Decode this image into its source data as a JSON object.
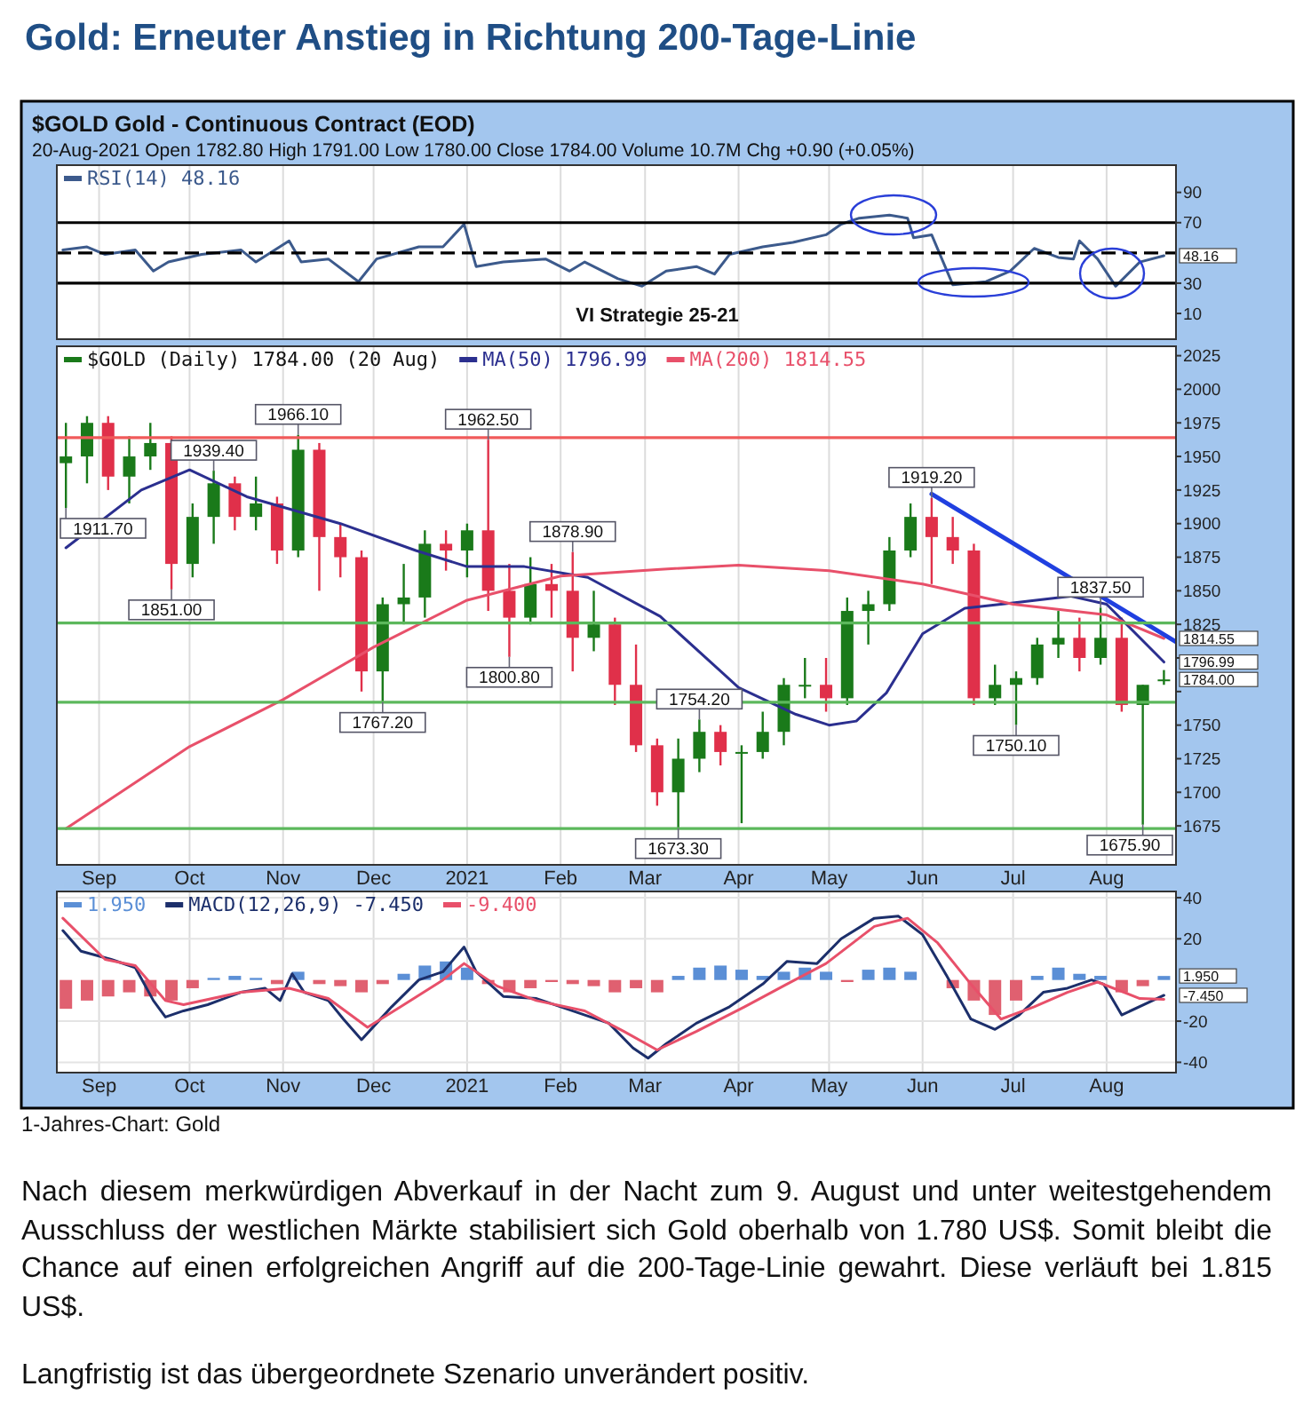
{
  "chart_data": [
    {
      "type": "line",
      "title": "Gold: Erneuter Anstieg in Richtung 200-Tage-Linie",
      "subtitle": "$GOLD Gold - Continuous Contract (EOD)",
      "annotations": [
        "20-Aug-2021  Open 1782.80  High 1791.00  Low 1780.00  Close 1784.00  Volume 10.7M  Chg +0.90 (+0.05%)",
        "VI Strategie 25-21",
        {
          "text": "48.16",
          "x": "2021-08-20",
          "y": 48.16
        }
      ],
      "xlim": [
        "2020-08-18",
        "2021-08-24"
      ],
      "xticks": [
        {
          "value": "2020-09-01",
          "label": null
        },
        {
          "value": "2020-10-01",
          "label": null
        },
        {
          "value": "2020-11-01",
          "label": null
        },
        {
          "value": "2020-12-01",
          "label": null
        },
        {
          "value": "2021-01-01",
          "label": null
        },
        {
          "value": "2021-02-01",
          "label": null
        },
        {
          "value": "2021-03-01",
          "label": null
        },
        {
          "value": "2021-04-01",
          "label": null
        },
        {
          "value": "2021-05-01",
          "label": null
        },
        {
          "value": "2021-06-01",
          "label": null
        },
        {
          "value": "2021-07-01",
          "label": null
        },
        {
          "value": "2021-08-01",
          "label": null
        }
      ],
      "ylim": [
        -7,
        108
      ],
      "yticks": [
        10,
        30,
        70,
        90
      ],
      "tick_labels": "y",
      "grid": "x",
      "legend": "top left",
      "ref_lines": [
        {
          "axis": "y",
          "value": 70,
          "color": "#000000"
        },
        {
          "axis": "y",
          "value": 30,
          "color": "#000000"
        },
        {
          "axis": "y",
          "value": 50,
          "color": "#000000",
          "line_style": "dashed"
        }
      ],
      "series": [
        {
          "name": "RSI(14) 48.16",
          "color": "#3c5a8c",
          "x": [
            "2020-08-20",
            "2020-08-28",
            "2020-09-03",
            "2020-09-13",
            "2020-09-19",
            "2020-09-24",
            "2020-10-05",
            "2020-10-18",
            "2020-10-23",
            "2020-11-03",
            "2020-11-07",
            "2020-11-16",
            "2020-11-26",
            "2020-12-02",
            "2020-12-16",
            "2020-12-24",
            "2020-12-31",
            "2021-01-04",
            "2021-01-13",
            "2021-01-27",
            "2021-02-04",
            "2021-02-09",
            "2021-02-20",
            "2021-02-28",
            "2021-03-08",
            "2021-03-18",
            "2021-03-24",
            "2021-03-29",
            "2021-04-09",
            "2021-04-19",
            "2021-04-30",
            "2021-05-05",
            "2021-05-11",
            "2021-05-21",
            "2021-05-27",
            "2021-05-29",
            "2021-06-04",
            "2021-06-11",
            "2021-06-22",
            "2021-06-30",
            "2021-07-08",
            "2021-07-16",
            "2021-07-21",
            "2021-07-23",
            "2021-07-29",
            "2021-08-04",
            "2021-08-12",
            "2021-08-20"
          ],
          "values": [
            52,
            54,
            49,
            52,
            38,
            44,
            49,
            52,
            44,
            58,
            44,
            46,
            31,
            46,
            54,
            54,
            69,
            41,
            44,
            46,
            38,
            44,
            33,
            28,
            38,
            41,
            36,
            49,
            54,
            57,
            62,
            69,
            73,
            75,
            73,
            60,
            62,
            29,
            31,
            38,
            53,
            47,
            46,
            58,
            46,
            28,
            44,
            48.16
          ]
        }
      ]
    },
    {
      "type": "line",
      "annotations": [
        {
          "text": "1911.70",
          "x": "2020-08-21",
          "y": 1911.7
        },
        {
          "text": "1851.00",
          "x": "2020-09-25",
          "y": 1851
        },
        {
          "text": "1939.40",
          "x": "2020-10-09",
          "y": 1939.4
        },
        {
          "text": "1966.10",
          "x": "2020-11-06",
          "y": 1966.1
        },
        {
          "text": "1767.20",
          "x": "2020-12-04",
          "y": 1767.2
        },
        {
          "text": "1962.50",
          "x": "2021-01-08",
          "y": 1962.5
        },
        {
          "text": "1800.80",
          "x": "2021-01-15",
          "y": 1800.8
        },
        {
          "text": "1878.90",
          "x": "2021-02-05",
          "y": 1878.9
        },
        {
          "text": "1673.30",
          "x": "2021-03-12",
          "y": 1673.3
        },
        {
          "text": "1754.20",
          "x": "2021-03-19",
          "y": 1754.2
        },
        {
          "text": "1919.20",
          "x": "2021-06-04",
          "y": 1919.2
        },
        {
          "text": "1750.10",
          "x": "2021-07-02",
          "y": 1750.1
        },
        {
          "text": "1837.50",
          "x": "2021-07-30",
          "y": 1837.5
        },
        {
          "text": "1675.90",
          "x": "2021-08-13",
          "y": 1675.9
        },
        {
          "text": "1814.55",
          "x": "2021-08-20",
          "y": 1814.55
        },
        {
          "text": "1796.99",
          "x": "2021-08-20",
          "y": 1796.99
        },
        {
          "text": "1784.00",
          "x": "2021-08-20",
          "y": 1784
        }
      ],
      "xlim": [
        "2020-08-18",
        "2021-08-24"
      ],
      "xticks": [
        {
          "value": "2020-09-01",
          "label": "Sep"
        },
        {
          "value": "2020-10-01",
          "label": "Oct"
        },
        {
          "value": "2020-11-01",
          "label": "Nov"
        },
        {
          "value": "2020-12-01",
          "label": "Dec"
        },
        {
          "value": "2021-01-01",
          "label": "2021"
        },
        {
          "value": "2021-02-01",
          "label": "Feb"
        },
        {
          "value": "2021-03-01",
          "label": "Mar"
        },
        {
          "value": "2021-04-01",
          "label": "Apr"
        },
        {
          "value": "2021-05-01",
          "label": "May"
        },
        {
          "value": "2021-06-01",
          "label": "Jun"
        },
        {
          "value": "2021-07-01",
          "label": "Jul"
        },
        {
          "value": "2021-08-01",
          "label": "Aug"
        }
      ],
      "ylim": [
        1646,
        2032
      ],
      "yticks": [
        1675,
        1700,
        1725,
        1750,
        {
          "value": 1775,
          "label": null
        },
        {
          "value": 1800,
          "label": null
        },
        1825,
        1850,
        1875,
        1900,
        1925,
        1950,
        1975,
        2000,
        2025
      ],
      "grid": "x",
      "legend": "top left",
      "ref_lines": [
        {
          "axis": "y",
          "value": 1964,
          "color": "#f05a5a"
        },
        {
          "axis": "y",
          "value": 1826,
          "color": "#5cb85c"
        },
        {
          "axis": "y",
          "value": 1767,
          "color": "#5cb85c"
        },
        {
          "axis": "y",
          "value": 1673,
          "color": "#5cb85c"
        }
      ],
      "series": [
        {
          "type": "candlestick",
          "name": "$GOLD (Daily) 1784.00 (20 Aug)",
          "color": "#1a7a1a",
          "x": [
            "2020-08-21",
            "2020-08-28",
            "2020-09-04",
            "2020-09-11",
            "2020-09-18",
            "2020-09-25",
            "2020-10-02",
            "2020-10-09",
            "2020-10-16",
            "2020-10-23",
            "2020-10-30",
            "2020-11-06",
            "2020-11-13",
            "2020-11-20",
            "2020-11-27",
            "2020-12-04",
            "2020-12-11",
            "2020-12-18",
            "2020-12-25",
            "2021-01-01",
            "2021-01-08",
            "2021-01-15",
            "2021-01-22",
            "2021-01-29",
            "2021-02-05",
            "2021-02-12",
            "2021-02-19",
            "2021-02-26",
            "2021-03-05",
            "2021-03-12",
            "2021-03-19",
            "2021-03-26",
            "2021-04-02",
            "2021-04-09",
            "2021-04-16",
            "2021-04-23",
            "2021-04-30",
            "2021-05-07",
            "2021-05-14",
            "2021-05-21",
            "2021-05-28",
            "2021-06-04",
            "2021-06-11",
            "2021-06-18",
            "2021-06-25",
            "2021-07-02",
            "2021-07-09",
            "2021-07-16",
            "2021-07-23",
            "2021-07-30",
            "2021-08-06",
            "2021-08-13",
            "2021-08-20"
          ],
          "ohlc": [
            [
              1945,
              1975,
              1911.7,
              1950
            ],
            [
              1950,
              1980,
              1930,
              1975
            ],
            [
              1975,
              1980,
              1925,
              1935
            ],
            [
              1935,
              1965,
              1915,
              1950
            ],
            [
              1950,
              1975,
              1940,
              1960
            ],
            [
              1960,
              1965,
              1851,
              1870
            ],
            [
              1870,
              1915,
              1860,
              1905
            ],
            [
              1905,
              1939.4,
              1885,
              1930
            ],
            [
              1930,
              1935,
              1895,
              1905
            ],
            [
              1905,
              1935,
              1895,
              1915
            ],
            [
              1915,
              1920,
              1870,
              1880
            ],
            [
              1880,
              1966.1,
              1875,
              1955
            ],
            [
              1955,
              1960,
              1850,
              1890
            ],
            [
              1890,
              1900,
              1860,
              1875
            ],
            [
              1875,
              1880,
              1775,
              1790
            ],
            [
              1790,
              1845,
              1767.2,
              1840
            ],
            [
              1840,
              1870,
              1825,
              1845
            ],
            [
              1845,
              1895,
              1830,
              1885
            ],
            [
              1885,
              1895,
              1865,
              1880
            ],
            [
              1880,
              1900,
              1860,
              1895
            ],
            [
              1895,
              1962.5,
              1835,
              1850
            ],
            [
              1850,
              1870,
              1800.8,
              1830
            ],
            [
              1830,
              1875,
              1825,
              1855
            ],
            [
              1855,
              1870,
              1830,
              1850
            ],
            [
              1850,
              1878.9,
              1790,
              1815
            ],
            [
              1815,
              1850,
              1805,
              1825
            ],
            [
              1825,
              1830,
              1765,
              1780
            ],
            [
              1780,
              1810,
              1730,
              1735
            ],
            [
              1735,
              1740,
              1690,
              1700
            ],
            [
              1700,
              1740,
              1673.3,
              1725
            ],
            [
              1725,
              1754.2,
              1715,
              1745
            ],
            [
              1745,
              1750,
              1720,
              1730
            ],
            [
              1730,
              1735,
              1677,
              1730
            ],
            [
              1730,
              1760,
              1725,
              1745
            ],
            [
              1745,
              1785,
              1735,
              1780
            ],
            [
              1780,
              1800,
              1770,
              1780
            ],
            [
              1780,
              1800,
              1760,
              1770
            ],
            [
              1770,
              1845,
              1765,
              1835
            ],
            [
              1835,
              1850,
              1810,
              1840
            ],
            [
              1840,
              1890,
              1835,
              1880
            ],
            [
              1880,
              1915,
              1875,
              1905
            ],
            [
              1905,
              1919.2,
              1855,
              1890
            ],
            [
              1890,
              1905,
              1870,
              1880
            ],
            [
              1880,
              1885,
              1765,
              1770
            ],
            [
              1770,
              1795,
              1765,
              1780
            ],
            [
              1780,
              1790,
              1750.1,
              1785
            ],
            [
              1785,
              1815,
              1780,
              1810
            ],
            [
              1810,
              1835,
              1800,
              1815
            ],
            [
              1815,
              1830,
              1790,
              1800
            ],
            [
              1800,
              1837.5,
              1795,
              1815
            ],
            [
              1815,
              1830,
              1760,
              1765
            ],
            [
              1765,
              1780,
              1675.9,
              1780
            ],
            [
              1782.8,
              1791,
              1780,
              1784
            ]
          ],
          "colors": [
            "#1a7a1a",
            "#1a7a1a",
            "#e0304a",
            "#1a7a1a",
            "#1a7a1a",
            "#e0304a",
            "#1a7a1a",
            "#1a7a1a",
            "#e0304a",
            "#1a7a1a",
            "#e0304a",
            "#1a7a1a",
            "#e0304a",
            "#e0304a",
            "#e0304a",
            "#1a7a1a",
            "#1a7a1a",
            "#1a7a1a",
            "#e0304a",
            "#1a7a1a",
            "#e0304a",
            "#e0304a",
            "#1a7a1a",
            "#e0304a",
            "#e0304a",
            "#1a7a1a",
            "#e0304a",
            "#e0304a",
            "#e0304a",
            "#1a7a1a",
            "#1a7a1a",
            "#e0304a",
            "#1a7a1a",
            "#1a7a1a",
            "#1a7a1a",
            "#1a7a1a",
            "#e0304a",
            "#1a7a1a",
            "#1a7a1a",
            "#1a7a1a",
            "#1a7a1a",
            "#e0304a",
            "#e0304a",
            "#e0304a",
            "#1a7a1a",
            "#1a7a1a",
            "#1a7a1a",
            "#1a7a1a",
            "#e0304a",
            "#1a7a1a",
            "#e0304a",
            "#1a7a1a",
            "#1a7a1a"
          ]
        },
        {
          "name": "MA(50) 1796.99",
          "color": "#2b2f8f",
          "x": [
            "2020-08-21",
            "2020-09-15",
            "2020-10-01",
            "2020-10-20",
            "2020-11-20",
            "2020-12-15",
            "2021-01-01",
            "2021-01-20",
            "2021-02-10",
            "2021-03-06",
            "2021-04-01",
            "2021-04-20",
            "2021-05-01",
            "2021-05-10",
            "2021-05-20",
            "2021-06-01",
            "2021-06-15",
            "2021-07-01",
            "2021-07-20",
            "2021-08-01",
            "2021-08-20"
          ],
          "values": [
            1882,
            1925,
            1940,
            1920,
            1900,
            1880,
            1868,
            1868,
            1860,
            1831,
            1778,
            1758,
            1750,
            1753,
            1774,
            1818,
            1837,
            1841,
            1846,
            1840,
            1796.99
          ]
        },
        {
          "name": "MA(200) 1814.55",
          "color": "#e8506a",
          "x": [
            "2020-08-21",
            "2020-10-01",
            "2020-11-01",
            "2020-12-01",
            "2021-01-01",
            "2021-02-01",
            "2021-03-06",
            "2021-04-01",
            "2021-05-01",
            "2021-06-01",
            "2021-07-01",
            "2021-08-01",
            "2021-08-20"
          ],
          "values": [
            1673,
            1734,
            1769,
            1808,
            1843,
            1861,
            1866,
            1869,
            1865,
            1855,
            1840,
            1832,
            1814.55
          ]
        },
        {
          "type": "line",
          "color": "#2040e0",
          "x": [
            "2021-06-04",
            "2021-08-24"
          ],
          "values": [
            1922,
            1812
          ]
        }
      ]
    },
    {
      "type": "line",
      "annotations": [
        "1-Jahres-Chart: Gold",
        "Nach diesem merkwürdigen Abverkauf in der Nacht zum 9. August und unter weitestgehendem Ausschluss der westlichen Märkte stabilisiert sich Gold oberhalb von 1.780 US$. Somit bleibt die Chance auf einen erfolgreichen Angriff auf die 200-Tage-Linie gewahrt. Diese verläuft bei 1.815 US$.",
        "Langfristig ist das übergeordnete Szenario unverändert positiv.",
        {
          "text": "1.950",
          "x": "2021-08-20",
          "y": 1.95
        },
        {
          "text": "-7.450",
          "x": "2021-08-20",
          "y": -7.45
        }
      ],
      "xlim": [
        "2020-08-18",
        "2021-08-24"
      ],
      "xticks": [
        {
          "value": "2020-09-01",
          "label": "Sep"
        },
        {
          "value": "2020-10-01",
          "label": "Oct"
        },
        {
          "value": "2020-11-01",
          "label": "Nov"
        },
        {
          "value": "2020-12-01",
          "label": "Dec"
        },
        {
          "value": "2021-01-01",
          "label": "2021"
        },
        {
          "value": "2021-02-01",
          "label": "Feb"
        },
        {
          "value": "2021-03-01",
          "label": "Mar"
        },
        {
          "value": "2021-04-01",
          "label": "Apr"
        },
        {
          "value": "2021-05-01",
          "label": "May"
        },
        {
          "value": "2021-06-01",
          "label": "Jun"
        },
        {
          "value": "2021-07-01",
          "label": "Jul"
        },
        {
          "value": "2021-08-01",
          "label": "Aug"
        }
      ],
      "ylim": [
        -45,
        43
      ],
      "yticks": [
        -40,
        -20,
        20,
        40
      ],
      "grid": true,
      "legend": "top left",
      "series": [
        {
          "type": "bar",
          "name": "1.950",
          "color": "#5b8fd6",
          "x": [
            "2020-08-21",
            "2020-08-28",
            "2020-09-04",
            "2020-09-11",
            "2020-09-18",
            "2020-09-25",
            "2020-10-02",
            "2020-10-09",
            "2020-10-16",
            "2020-10-23",
            "2020-10-30",
            "2020-11-06",
            "2020-11-13",
            "2020-11-20",
            "2020-11-27",
            "2020-12-04",
            "2020-12-11",
            "2020-12-18",
            "2020-12-25",
            "2021-01-01",
            "2021-01-08",
            "2021-01-15",
            "2021-01-22",
            "2021-01-29",
            "2021-02-05",
            "2021-02-12",
            "2021-02-19",
            "2021-02-26",
            "2021-03-05",
            "2021-03-12",
            "2021-03-19",
            "2021-03-26",
            "2021-04-02",
            "2021-04-09",
            "2021-04-16",
            "2021-04-23",
            "2021-04-30",
            "2021-05-07",
            "2021-05-14",
            "2021-05-21",
            "2021-05-28",
            "2021-06-04",
            "2021-06-11",
            "2021-06-18",
            "2021-06-25",
            "2021-07-02",
            "2021-07-09",
            "2021-07-16",
            "2021-07-23",
            "2021-07-30",
            "2021-08-06",
            "2021-08-13",
            "2021-08-20"
          ],
          "values": [
            -14,
            -10,
            -8,
            -6,
            -8,
            -10,
            -4,
            1,
            2,
            1,
            -2,
            4,
            -2,
            -3,
            -6,
            -2,
            3,
            7,
            9,
            6,
            -2,
            -6,
            -4,
            -1,
            -2,
            -3,
            -6,
            -4,
            -6,
            2,
            6,
            7,
            5,
            2,
            4,
            6,
            4,
            -1,
            5,
            6,
            4,
            0,
            -4,
            -10,
            -17,
            -10,
            2,
            6,
            3,
            2,
            -6,
            -3,
            1.95
          ],
          "colors": [
            "#e06070",
            "#e06070",
            "#e06070",
            "#e06070",
            "#e06070",
            "#e06070",
            "#e06070",
            "#5b8fd6",
            "#5b8fd6",
            "#5b8fd6",
            "#e06070",
            "#5b8fd6",
            "#e06070",
            "#e06070",
            "#e06070",
            "#e06070",
            "#5b8fd6",
            "#5b8fd6",
            "#5b8fd6",
            "#5b8fd6",
            "#e06070",
            "#e06070",
            "#e06070",
            "#e06070",
            "#e06070",
            "#e06070",
            "#e06070",
            "#e06070",
            "#e06070",
            "#5b8fd6",
            "#5b8fd6",
            "#5b8fd6",
            "#5b8fd6",
            "#5b8fd6",
            "#5b8fd6",
            "#5b8fd6",
            "#5b8fd6",
            "#e06070",
            "#5b8fd6",
            "#5b8fd6",
            "#5b8fd6",
            "#5b8fd6",
            "#e06070",
            "#e06070",
            "#e06070",
            "#e06070",
            "#5b8fd6",
            "#5b8fd6",
            "#5b8fd6",
            "#5b8fd6",
            "#e06070",
            "#e06070",
            "#5b8fd6"
          ]
        },
        {
          "name": "MACD(12,26,9) -7.450",
          "color": "#1c2f6b",
          "x": [
            "2020-08-20",
            "2020-08-26",
            "2020-09-05",
            "2020-09-13",
            "2020-09-19",
            "2020-09-23",
            "2020-09-29",
            "2020-10-07",
            "2020-10-18",
            "2020-10-26",
            "2020-10-31",
            "2020-11-04",
            "2020-11-08",
            "2020-11-16",
            "2020-11-21",
            "2020-11-27",
            "2020-12-02",
            "2020-12-07",
            "2020-12-16",
            "2020-12-24",
            "2020-12-31",
            "2021-01-04",
            "2021-01-13",
            "2021-01-24",
            "2021-02-01",
            "2021-02-09",
            "2021-02-17",
            "2021-02-25",
            "2021-03-02",
            "2021-03-08",
            "2021-03-18",
            "2021-03-29",
            "2021-04-09",
            "2021-04-17",
            "2021-04-27",
            "2021-05-05",
            "2021-05-16",
            "2021-05-24",
            "2021-06-01",
            "2021-06-09",
            "2021-06-17",
            "2021-06-25",
            "2021-07-03",
            "2021-07-11",
            "2021-07-19",
            "2021-07-27",
            "2021-07-31",
            "2021-08-06",
            "2021-08-20"
          ],
          "values": [
            24,
            14,
            10,
            6,
            -10,
            -18,
            -15,
            -12,
            -6,
            -4,
            -10,
            3,
            -6,
            -10,
            -19,
            -29,
            -21,
            -13,
            0,
            4,
            16,
            4,
            -8,
            -9,
            -13,
            -17,
            -21,
            -33,
            -38,
            -31,
            -21,
            -13,
            -2,
            9,
            8,
            20,
            30,
            31,
            22,
            2,
            -19,
            -24,
            -17,
            -6,
            -4,
            0,
            -2,
            -17,
            -7.45
          ]
        },
        {
          "name": "-9.400",
          "color": "#e8506a",
          "x": [
            "2020-08-20",
            "2020-09-03",
            "2020-09-13",
            "2020-09-23",
            "2020-09-29",
            "2020-10-18",
            "2020-11-03",
            "2020-11-16",
            "2020-11-29",
            "2020-12-10",
            "2020-12-24",
            "2020-12-31",
            "2021-01-11",
            "2021-01-24",
            "2021-02-09",
            "2021-02-22",
            "2021-03-05",
            "2021-03-18",
            "2021-04-03",
            "2021-04-17",
            "2021-04-30",
            "2021-05-16",
            "2021-05-27",
            "2021-06-06",
            "2021-06-17",
            "2021-06-27",
            "2021-07-08",
            "2021-07-19",
            "2021-07-29",
            "2021-08-12",
            "2021-08-20"
          ],
          "values": [
            30,
            10,
            7,
            -10,
            -12,
            -6,
            -4,
            -9,
            -23,
            -13,
            0,
            8,
            -3,
            -10,
            -15,
            -25,
            -34,
            -25,
            -13,
            -2,
            8,
            26,
            30,
            18,
            -2,
            -19,
            -13,
            -6,
            -1,
            -9,
            -9.4
          ]
        }
      ]
    }
  ]
}
